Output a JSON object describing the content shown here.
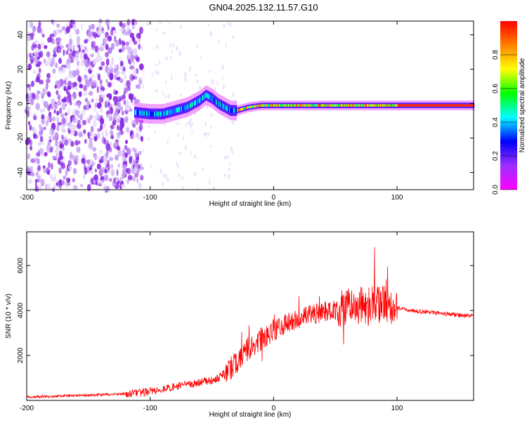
{
  "title": "GN04.2025.132.11.57.G10",
  "chart_data": [
    {
      "type": "heatmap",
      "title": "GN04.2025.132.11.57.G10",
      "xlabel": "Height of straight line (km)",
      "ylabel": "Frequency (Hz)",
      "xlim": [
        -200,
        162
      ],
      "ylim": [
        -50,
        48
      ],
      "x_ticks": [
        -200,
        -100,
        0,
        100
      ],
      "y_ticks": [
        -40,
        -20,
        0,
        20,
        40
      ],
      "grid": false,
      "colorbar": {
        "label": "Normalized spectral amplitude",
        "ticks": [
          0.0,
          0.2,
          0.4,
          0.6,
          0.8
        ],
        "range": [
          0,
          1
        ],
        "colors": [
          "#ff00ff",
          "#9b30ff",
          "#0000ff",
          "#00ffff",
          "#00ff00",
          "#ffff00",
          "#ff8000",
          "#ff0000"
        ]
      },
      "signal_track": {
        "x": [
          -113,
          -100,
          -90,
          -80,
          -70,
          -60,
          -55,
          -50,
          -45,
          -40,
          -35,
          -30,
          -20,
          -10,
          0,
          20,
          40,
          60,
          80,
          100,
          120,
          140,
          162
        ],
        "freq": [
          -5,
          -6,
          -6,
          -4,
          -2,
          2,
          5,
          3,
          0,
          -2,
          -4,
          -4,
          -2,
          -1,
          -1,
          -1,
          -1,
          -1,
          -1,
          -1,
          -1,
          -1,
          -1
        ]
      },
      "noise_region": {
        "x_from": -200,
        "x_to": -110,
        "freq_range": [
          -50,
          48
        ]
      }
    },
    {
      "type": "line",
      "xlabel": "Height of straight line (km)",
      "ylabel": "SNR (10 * v/v)",
      "xlim": [
        -200,
        162
      ],
      "ylim": [
        0,
        7500
      ],
      "x_ticks": [
        -200,
        -100,
        0,
        100
      ],
      "y_ticks": [
        2000,
        4000,
        6000
      ],
      "grid": false,
      "color": "#ff0000",
      "series": [
        {
          "x": [
            -200,
            -180,
            -160,
            -140,
            -120,
            -110,
            -100,
            -90,
            -80,
            -70,
            -60,
            -50,
            -45,
            -40,
            -35,
            -30,
            -25,
            -20,
            -15,
            -10,
            -5,
            0,
            10,
            20,
            30,
            40,
            50,
            60,
            70,
            80,
            90,
            95,
            100,
            110,
            120,
            130,
            140,
            150,
            162
          ],
          "y": [
            150,
            180,
            220,
            250,
            300,
            320,
            400,
            500,
            600,
            700,
            800,
            900,
            1000,
            1200,
            1400,
            1700,
            2000,
            2300,
            2500,
            2700,
            2900,
            3100,
            3400,
            3600,
            3800,
            3950,
            4050,
            4150,
            4200,
            4250,
            4300,
            4300,
            4150,
            4000,
            3950,
            3900,
            3850,
            3800,
            3750
          ]
        }
      ]
    }
  ]
}
